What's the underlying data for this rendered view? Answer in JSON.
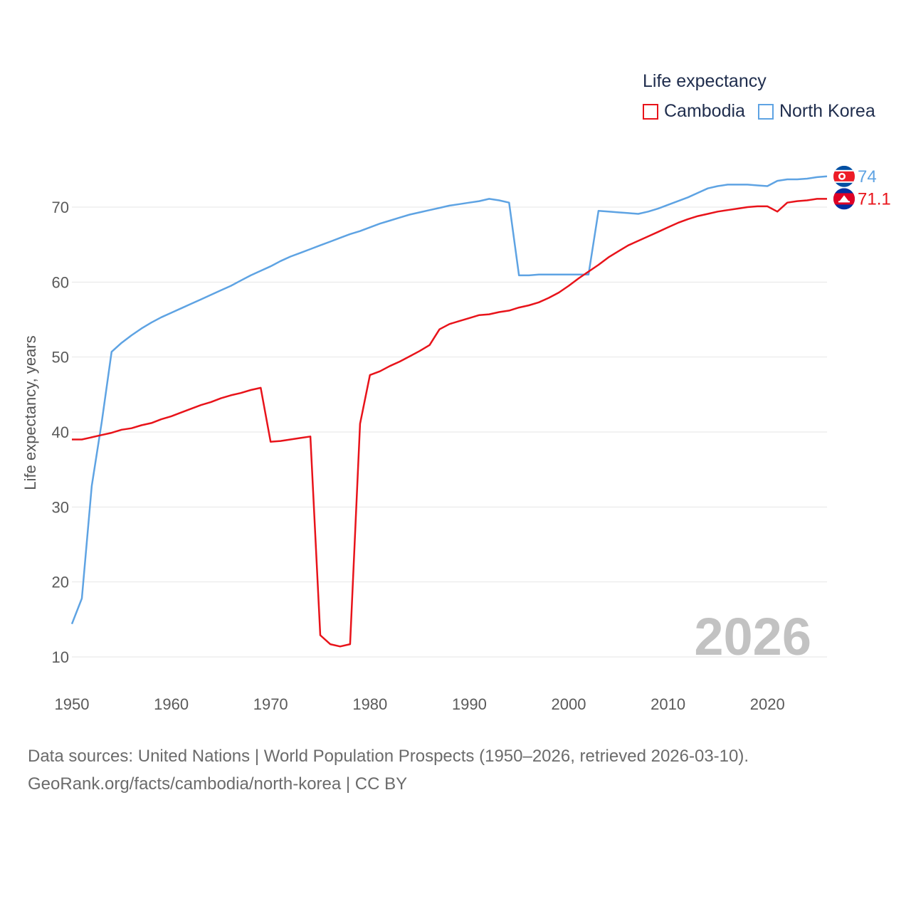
{
  "legend": {
    "title": "Life expectancy",
    "items": [
      {
        "label": "Cambodia",
        "color": "#e8131a"
      },
      {
        "label": "North Korea",
        "color": "#5ea3e3"
      }
    ]
  },
  "source": {
    "line1": "Data sources: United Nations | World Population Prospects (1950–2026, retrieved 2026-03-10).",
    "line2": "GeoRank.org/facts/cambodia/north-korea | CC BY"
  },
  "chart_data": {
    "type": "line",
    "title": "Life expectancy",
    "xlabel": "",
    "ylabel": "Life expectancy, years",
    "xlim": [
      1950,
      2026
    ],
    "ylim": [
      10,
      75
    ],
    "year_label": "2026",
    "x_ticks": [
      1950,
      1960,
      1970,
      1980,
      1990,
      2000,
      2010,
      2020
    ],
    "y_ticks": [
      10,
      20,
      30,
      40,
      50,
      60,
      70
    ],
    "grid": true,
    "series": [
      {
        "name": "North Korea",
        "color": "#5ea3e3",
        "end_label": "74",
        "flag_icon": "north-korea-flag-icon",
        "x": [
          1950,
          1951,
          1952,
          1953,
          1954,
          1955,
          1956,
          1957,
          1958,
          1959,
          1960,
          1961,
          1962,
          1963,
          1964,
          1965,
          1966,
          1967,
          1968,
          1969,
          1970,
          1971,
          1972,
          1973,
          1974,
          1975,
          1976,
          1977,
          1978,
          1979,
          1980,
          1981,
          1982,
          1983,
          1984,
          1985,
          1986,
          1987,
          1988,
          1989,
          1990,
          1991,
          1992,
          1993,
          1994,
          1995,
          1996,
          1997,
          1998,
          1999,
          2000,
          2001,
          2002,
          2003,
          2004,
          2005,
          2006,
          2007,
          2008,
          2009,
          2010,
          2011,
          2012,
          2013,
          2014,
          2015,
          2016,
          2017,
          2018,
          2019,
          2020,
          2021,
          2022,
          2023,
          2024,
          2025,
          2026
        ],
        "y": [
          14.4,
          17.8,
          32.8,
          41.3,
          50.7,
          51.9,
          52.9,
          53.8,
          54.6,
          55.3,
          55.9,
          56.5,
          57.1,
          57.7,
          58.3,
          58.9,
          59.5,
          60.2,
          60.9,
          61.5,
          62.1,
          62.8,
          63.4,
          63.9,
          64.4,
          64.9,
          65.4,
          65.9,
          66.4,
          66.8,
          67.3,
          67.8,
          68.2,
          68.6,
          69.0,
          69.3,
          69.6,
          69.9,
          70.2,
          70.4,
          70.6,
          70.8,
          71.1,
          70.9,
          70.6,
          60.9,
          60.9,
          61.0,
          61.0,
          61.0,
          61.0,
          61.0,
          61.0,
          69.5,
          69.4,
          69.3,
          69.2,
          69.1,
          69.4,
          69.8,
          70.3,
          70.8,
          71.3,
          71.9,
          72.5,
          72.8,
          73.0,
          73.0,
          73.0,
          72.9,
          72.8,
          73.5,
          73.7,
          73.7,
          73.8,
          74.0,
          74.1
        ]
      },
      {
        "name": "Cambodia",
        "color": "#e8131a",
        "end_label": "71.1",
        "flag_icon": "cambodia-flag-icon",
        "x": [
          1950,
          1951,
          1952,
          1953,
          1954,
          1955,
          1956,
          1957,
          1958,
          1959,
          1960,
          1961,
          1962,
          1963,
          1964,
          1965,
          1966,
          1967,
          1968,
          1969,
          1970,
          1971,
          1972,
          1973,
          1974,
          1975,
          1976,
          1977,
          1978,
          1979,
          1980,
          1981,
          1982,
          1983,
          1984,
          1985,
          1986,
          1987,
          1988,
          1989,
          1990,
          1991,
          1992,
          1993,
          1994,
          1995,
          1996,
          1997,
          1998,
          1999,
          2000,
          2001,
          2002,
          2003,
          2004,
          2005,
          2006,
          2007,
          2008,
          2009,
          2010,
          2011,
          2012,
          2013,
          2014,
          2015,
          2016,
          2017,
          2018,
          2019,
          2020,
          2021,
          2022,
          2023,
          2024,
          2025,
          2026
        ],
        "y": [
          39.0,
          39.0,
          39.3,
          39.6,
          39.9,
          40.3,
          40.5,
          40.9,
          41.2,
          41.7,
          42.1,
          42.6,
          43.1,
          43.6,
          44.0,
          44.5,
          44.9,
          45.2,
          45.6,
          45.9,
          38.7,
          38.8,
          39.0,
          39.2,
          39.4,
          12.9,
          11.7,
          11.4,
          11.7,
          41.1,
          47.6,
          48.1,
          48.8,
          49.4,
          50.1,
          50.8,
          51.6,
          53.7,
          54.4,
          54.8,
          55.2,
          55.6,
          55.7,
          56.0,
          56.2,
          56.6,
          56.9,
          57.3,
          57.9,
          58.6,
          59.5,
          60.5,
          61.4,
          62.3,
          63.3,
          64.1,
          64.9,
          65.5,
          66.1,
          66.7,
          67.3,
          67.9,
          68.4,
          68.8,
          69.1,
          69.4,
          69.6,
          69.8,
          70.0,
          70.1,
          70.1,
          69.4,
          70.6,
          70.8,
          70.9,
          71.1,
          71.1
        ]
      }
    ]
  }
}
